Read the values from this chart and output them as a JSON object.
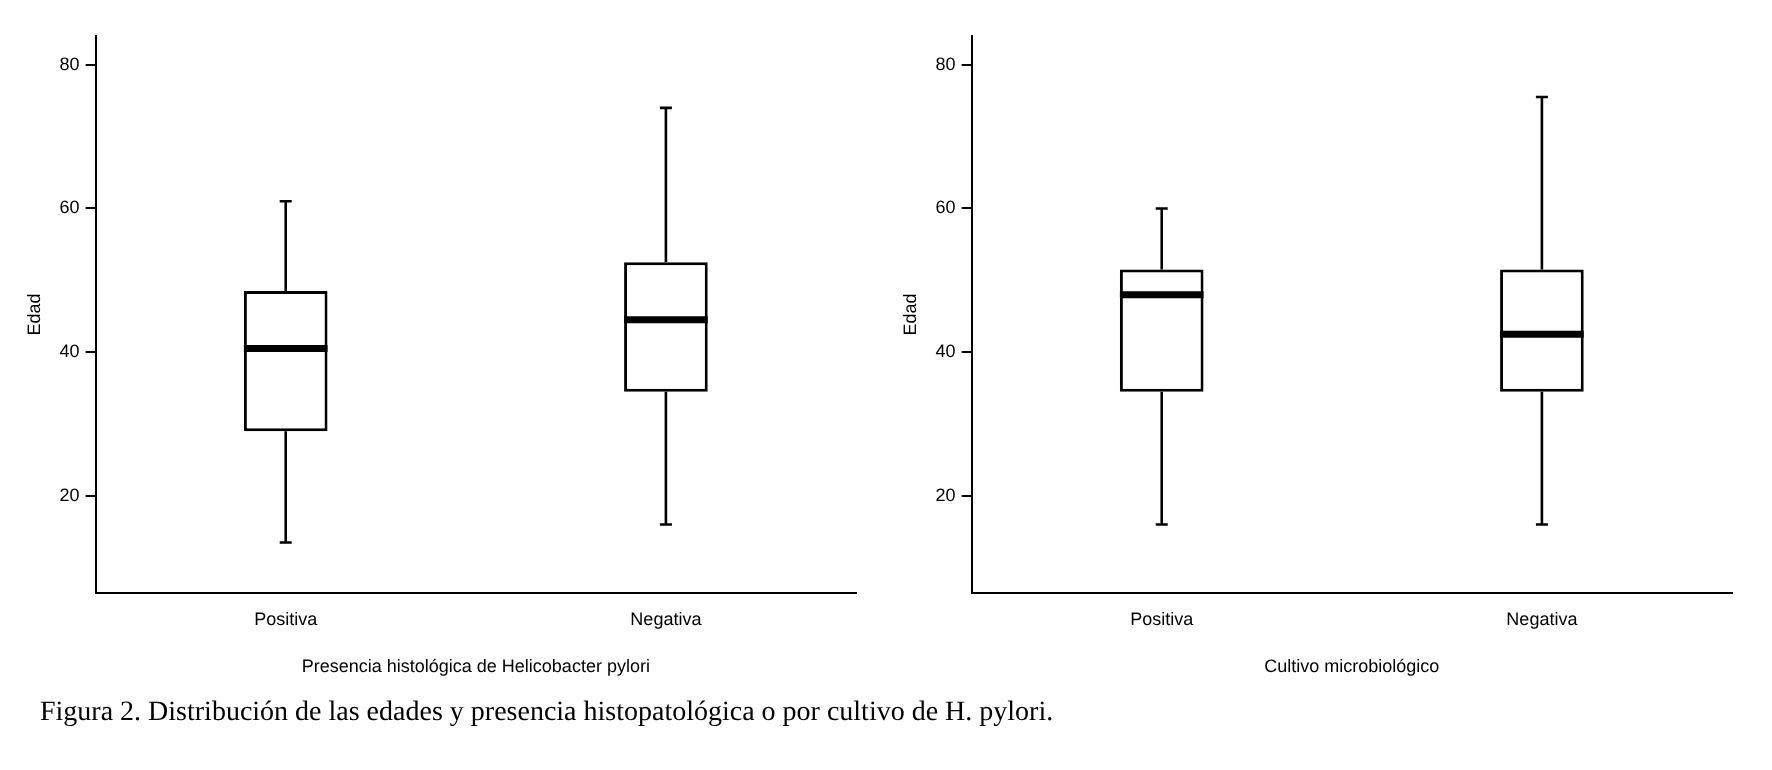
{
  "chart_data": [
    {
      "type": "box",
      "xlabel": "Presencia histológica de Helicobacter pylori",
      "ylabel": "Edad",
      "categories": [
        "Positiva",
        "Negativa"
      ],
      "ylim": [
        6.5,
        84
      ],
      "yticks": [
        20,
        40,
        60,
        80
      ],
      "grid": false,
      "legend": false,
      "series": [
        {
          "color": "#000000",
          "boxes": [
            {
              "low": 13.5,
              "q1": 29,
              "median": 40.5,
              "q3": 48.5,
              "high": 61
            },
            {
              "low": 16,
              "q1": 34.5,
              "median": 44.5,
              "q3": 52.5,
              "high": 74
            }
          ]
        }
      ],
      "annotations": [
        "Figura 2. Distribución de las edades y presencia histopatológica o por cultivo de H. pylori."
      ]
    },
    {
      "type": "box",
      "xlabel": "Cultivo microbiológico",
      "ylabel": "Edad",
      "categories": [
        "Positiva",
        "Negativa"
      ],
      "ylim": [
        6.5,
        84
      ],
      "yticks": [
        20,
        40,
        60,
        80
      ],
      "grid": false,
      "legend": false,
      "series": [
        {
          "color": "#000000",
          "boxes": [
            {
              "low": 16,
              "q1": 34.5,
              "median": 48,
              "q3": 51.5,
              "high": 60
            },
            {
              "low": 16,
              "q1": 34.5,
              "median": 42.5,
              "q3": 51.5,
              "high": 75.5
            }
          ]
        }
      ]
    }
  ]
}
